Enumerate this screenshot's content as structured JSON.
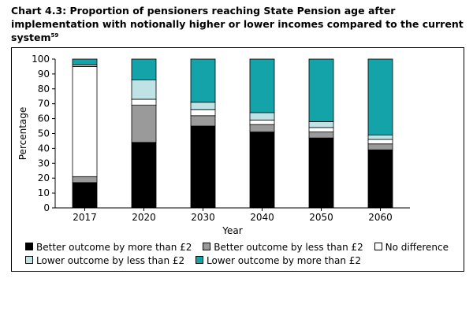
{
  "title": "Chart 4.3: Proportion of pensioners reaching State Pension age after implementation with notionally higher or lower incomes compared to the current system",
  "title_footnote": "59",
  "chart_data": {
    "type": "bar",
    "stacked": true,
    "categories": [
      "2017",
      "2020",
      "2030",
      "2040",
      "2050",
      "2060"
    ],
    "xlabel": "Year",
    "ylabel": "Percentage",
    "ylim": [
      0,
      100
    ],
    "yticks": [
      0,
      10,
      20,
      30,
      40,
      50,
      60,
      70,
      80,
      90,
      100
    ],
    "grid": false,
    "legend_position": "bottom",
    "series": [
      {
        "name": "Better outcome by more than £2",
        "color": "#000000",
        "values": [
          17,
          44,
          55,
          51,
          47,
          39
        ]
      },
      {
        "name": "Better outcome by less than £2",
        "color": "#9a9a9a",
        "values": [
          4,
          25,
          7,
          5,
          4,
          4
        ]
      },
      {
        "name": "No difference",
        "color": "#ffffff",
        "values": [
          74,
          4,
          4,
          3,
          3,
          3
        ]
      },
      {
        "name": "Lower outcome by less than £2",
        "color": "#bfe2e4",
        "values": [
          1,
          13,
          5,
          5,
          4,
          3
        ]
      },
      {
        "name": "Lower outcome by more than £2",
        "color": "#14a3a8",
        "values": [
          4,
          14,
          29,
          36,
          42,
          51
        ]
      }
    ]
  }
}
